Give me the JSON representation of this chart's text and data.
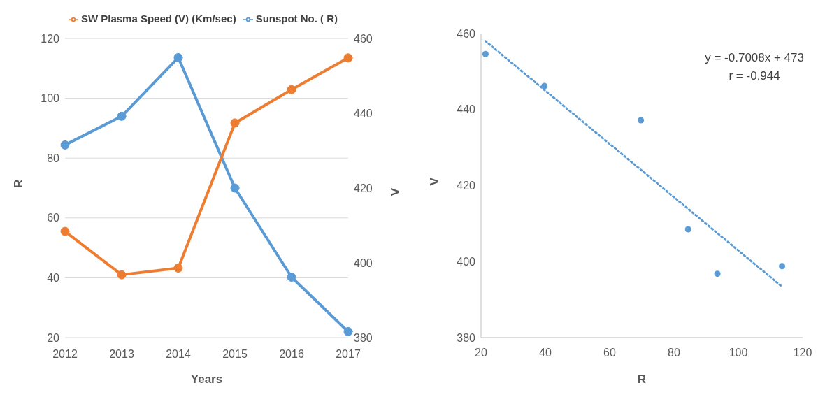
{
  "chart_data": [
    {
      "type": "line",
      "xlabel": "Years",
      "ylabel": "R",
      "y2label": "V",
      "categories": [
        "2012",
        "2013",
        "2014",
        "2015",
        "2016",
        "2017"
      ],
      "series": [
        {
          "name": "Sunspot No. ( R)",
          "color": "#5b9bd5",
          "values": [
            84.4,
            94,
            113.6,
            70,
            40.2,
            22
          ]
        },
        {
          "name": "SW Plasma Speed (V) (Km/sec)",
          "color": "#ed7d31",
          "axis": "y2",
          "values": [
            408.4,
            396.8,
            398.6,
            437.4,
            446.3,
            454.8
          ]
        }
      ],
      "ylim": [
        20,
        120
      ],
      "yticks": [
        20,
        40,
        60,
        80,
        100,
        120
      ],
      "y2lim": [
        380,
        460
      ],
      "y2ticks": [
        380,
        400,
        420,
        440,
        460
      ],
      "grid": "y",
      "legend": "top",
      "marker": "circle"
    },
    {
      "type": "scatter",
      "xlabel": "R",
      "ylabel": "V",
      "annotations": [
        "y = -0.7008x + 473",
        "r = -0.944"
      ],
      "series": [
        {
          "color": "#5b9bd5",
          "x": [
            21.4,
            39.7,
            69.7,
            84.4,
            93.5,
            113.6
          ],
          "values": [
            454.6,
            446.2,
            437.2,
            408.5,
            396.8,
            398.8
          ]
        },
        {
          "type": "line",
          "color": "#5b9bd5",
          "x": [
            21.4,
            113.6
          ],
          "values": [
            458,
            393.4
          ],
          "line_style": "dotted",
          "marker": "none"
        }
      ],
      "xlim": [
        20,
        120
      ],
      "xticks": [
        20,
        40,
        60,
        80,
        100,
        120
      ],
      "ylim": [
        380,
        460
      ],
      "yticks": [
        380,
        400,
        420,
        440,
        460
      ],
      "marker": "circle"
    }
  ]
}
